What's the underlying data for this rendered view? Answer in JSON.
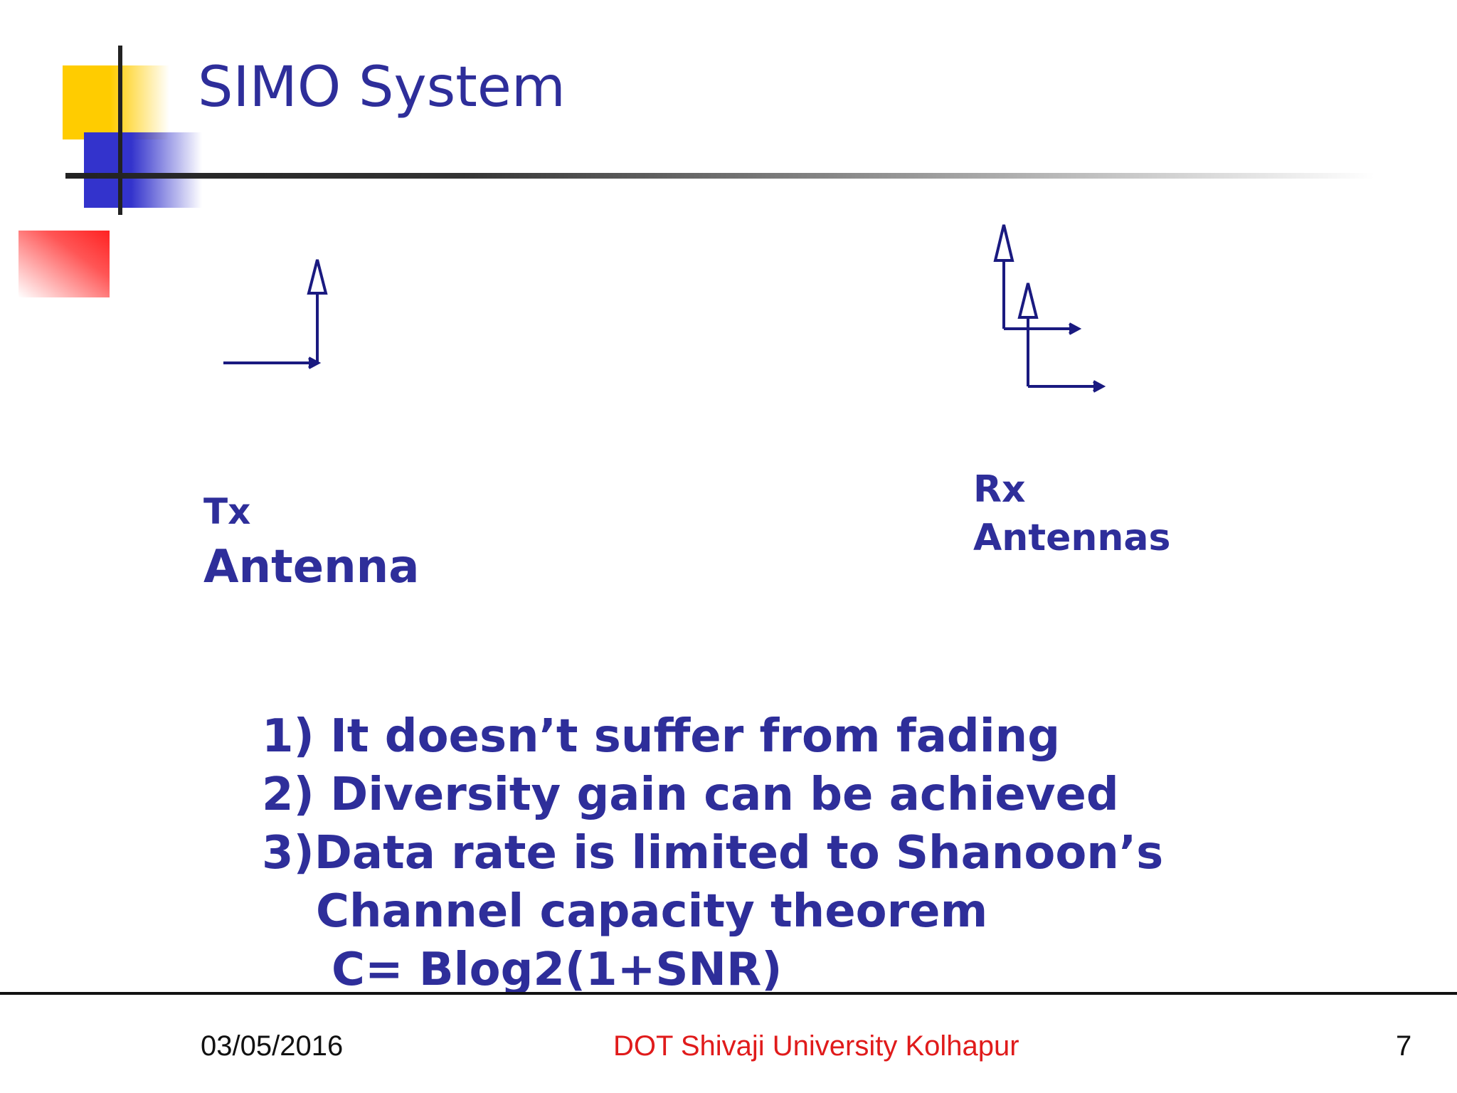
{
  "slide": {
    "title": "SIMO System",
    "tx": {
      "line1": "Tx",
      "line2": "Antenna"
    },
    "rx": {
      "line1": "Rx",
      "line2": "Antennas"
    },
    "points": [
      "1) It  doesn’t suffer from fading",
      "2) Diversity gain can be achieved",
      "3)Data rate is limited to Shanoon’s",
      "Channel capacity theorem",
      "C= Blog2(1+SNR)"
    ]
  },
  "footer": {
    "date": "03/05/2016",
    "org": "DOT Shivaji University Kolhapur",
    "page": "7"
  },
  "colors": {
    "text": "#2e2e9a",
    "footer_org": "#e01b1b",
    "yellow": "#ffcc00",
    "blue": "#3333cc",
    "red": "#ff2a2a",
    "diagram": "#1a1a80"
  }
}
